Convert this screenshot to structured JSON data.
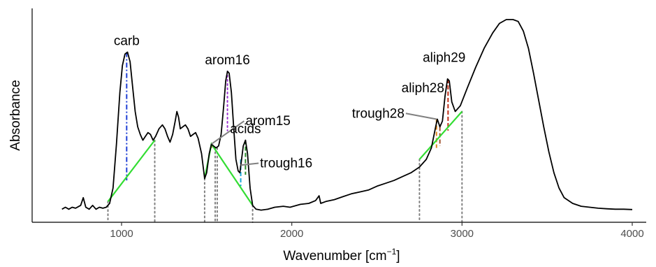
{
  "chart_data": {
    "type": "line",
    "title": "",
    "xlabel": "Wavenumber [cm",
    "xlabel_superscript": "−1",
    "xlabel_suffix": "]",
    "ylabel": "Absorbance",
    "xlim": [
      650,
      4100
    ],
    "ylim": [
      0,
      1
    ],
    "x_ticks": [
      1000,
      2000,
      3000,
      4000
    ],
    "x_tick_labels": [
      "1000",
      "2000",
      "3000",
      "4000"
    ],
    "y_ticks_shown": false,
    "grid": false,
    "series": [
      {
        "color": "#000000",
        "points": [
          [
            650,
            0.01
          ],
          [
            670,
            0.02
          ],
          [
            690,
            0.01
          ],
          [
            710,
            0.02
          ],
          [
            730,
            0.015
          ],
          [
            760,
            0.03
          ],
          [
            775,
            0.07
          ],
          [
            790,
            0.02
          ],
          [
            810,
            0.01
          ],
          [
            830,
            0.03
          ],
          [
            850,
            0.01
          ],
          [
            870,
            0.02
          ],
          [
            890,
            0.015
          ],
          [
            910,
            0.02
          ],
          [
            930,
            0.04
          ],
          [
            950,
            0.12
          ],
          [
            970,
            0.35
          ],
          [
            990,
            0.62
          ],
          [
            1005,
            0.76
          ],
          [
            1020,
            0.82
          ],
          [
            1035,
            0.83
          ],
          [
            1050,
            0.78
          ],
          [
            1065,
            0.65
          ],
          [
            1080,
            0.52
          ],
          [
            1095,
            0.44
          ],
          [
            1110,
            0.4
          ],
          [
            1125,
            0.37
          ],
          [
            1140,
            0.39
          ],
          [
            1155,
            0.41
          ],
          [
            1170,
            0.4
          ],
          [
            1185,
            0.37
          ],
          [
            1200,
            0.39
          ],
          [
            1220,
            0.43
          ],
          [
            1240,
            0.45
          ],
          [
            1255,
            0.43
          ],
          [
            1270,
            0.39
          ],
          [
            1285,
            0.36
          ],
          [
            1300,
            0.4
          ],
          [
            1315,
            0.47
          ],
          [
            1325,
            0.52
          ],
          [
            1335,
            0.49
          ],
          [
            1345,
            0.43
          ],
          [
            1360,
            0.44
          ],
          [
            1375,
            0.45
          ],
          [
            1390,
            0.43
          ],
          [
            1405,
            0.39
          ],
          [
            1420,
            0.4
          ],
          [
            1435,
            0.41
          ],
          [
            1450,
            0.38
          ],
          [
            1470,
            0.3
          ],
          [
            1488,
            0.17
          ],
          [
            1500,
            0.2
          ],
          [
            1515,
            0.3
          ],
          [
            1528,
            0.35
          ],
          [
            1540,
            0.34
          ],
          [
            1555,
            0.33
          ],
          [
            1570,
            0.34
          ],
          [
            1585,
            0.4
          ],
          [
            1600,
            0.55
          ],
          [
            1612,
            0.68
          ],
          [
            1622,
            0.73
          ],
          [
            1632,
            0.72
          ],
          [
            1645,
            0.62
          ],
          [
            1660,
            0.42
          ],
          [
            1672,
            0.27
          ],
          [
            1685,
            0.21
          ],
          [
            1695,
            0.2
          ],
          [
            1705,
            0.27
          ],
          [
            1715,
            0.34
          ],
          [
            1728,
            0.37
          ],
          [
            1740,
            0.3
          ],
          [
            1755,
            0.12
          ],
          [
            1770,
            0.03
          ],
          [
            1790,
            0.01
          ],
          [
            1820,
            0.005
          ],
          [
            1860,
            0.01
          ],
          [
            1900,
            0.02
          ],
          [
            1950,
            0.025
          ],
          [
            1990,
            0.02
          ],
          [
            2050,
            0.035
          ],
          [
            2100,
            0.04
          ],
          [
            2140,
            0.055
          ],
          [
            2160,
            0.08
          ],
          [
            2170,
            0.04
          ],
          [
            2200,
            0.05
          ],
          [
            2250,
            0.06
          ],
          [
            2300,
            0.075
          ],
          [
            2350,
            0.09
          ],
          [
            2400,
            0.1
          ],
          [
            2450,
            0.11
          ],
          [
            2500,
            0.13
          ],
          [
            2550,
            0.145
          ],
          [
            2600,
            0.16
          ],
          [
            2650,
            0.18
          ],
          [
            2700,
            0.2
          ],
          [
            2750,
            0.23
          ],
          [
            2790,
            0.27
          ],
          [
            2820,
            0.33
          ],
          [
            2845,
            0.44
          ],
          [
            2855,
            0.48
          ],
          [
            2870,
            0.44
          ],
          [
            2885,
            0.47
          ],
          [
            2900,
            0.6
          ],
          [
            2915,
            0.69
          ],
          [
            2925,
            0.68
          ],
          [
            2940,
            0.57
          ],
          [
            2960,
            0.52
          ],
          [
            2990,
            0.55
          ],
          [
            3030,
            0.64
          ],
          [
            3080,
            0.75
          ],
          [
            3130,
            0.85
          ],
          [
            3180,
            0.93
          ],
          [
            3220,
            0.98
          ],
          [
            3260,
            1.0
          ],
          [
            3300,
            1.0
          ],
          [
            3330,
            0.99
          ],
          [
            3360,
            0.94
          ],
          [
            3390,
            0.85
          ],
          [
            3420,
            0.72
          ],
          [
            3450,
            0.58
          ],
          [
            3480,
            0.44
          ],
          [
            3510,
            0.31
          ],
          [
            3540,
            0.2
          ],
          [
            3570,
            0.12
          ],
          [
            3600,
            0.07
          ],
          [
            3650,
            0.04
          ],
          [
            3700,
            0.025
          ],
          [
            3750,
            0.02
          ],
          [
            3800,
            0.015
          ],
          [
            3850,
            0.012
          ],
          [
            3900,
            0.01
          ],
          [
            3950,
            0.01
          ],
          [
            4000,
            0.008
          ]
        ]
      }
    ],
    "baselines": [
      {
        "color": "#33dd33",
        "points": [
          [
            920,
            0.05
          ],
          [
            1195,
            0.37
          ]
        ]
      },
      {
        "color": "#33dd33",
        "points": [
          [
            1488,
            0.17
          ],
          [
            1528,
            0.35
          ],
          [
            1770,
            0.03
          ]
        ]
      },
      {
        "color": "#33dd33",
        "points": [
          [
            2750,
            0.27
          ],
          [
            3000,
            0.52
          ]
        ]
      }
    ],
    "markers": [
      {
        "x": 920,
        "y_top": 0.05,
        "style": "dotted",
        "color": "#808080"
      },
      {
        "x": 1195,
        "y_top": 0.37,
        "style": "dotted",
        "color": "#808080"
      },
      {
        "x": 1488,
        "y_top": 0.17,
        "style": "dotted",
        "color": "#808080"
      },
      {
        "x": 1550,
        "y_top": 0.33,
        "style": "dotted",
        "color": "#808080"
      },
      {
        "x": 1562,
        "y_top": 0.33,
        "style": "dotted",
        "color": "#808080"
      },
      {
        "x": 1770,
        "y_top": 0.03,
        "style": "dotted",
        "color": "#808080"
      },
      {
        "x": 2750,
        "y_top": 0.27,
        "style": "dotted",
        "color": "#808080"
      },
      {
        "x": 3000,
        "y_top": 0.52,
        "style": "dotted",
        "color": "#808080"
      },
      {
        "x": 1030,
        "y_bottom": 0.16,
        "y_top": 0.83,
        "style": "dashdot",
        "color": "#1f3fd6"
      },
      {
        "x": 1622,
        "y_bottom": 0.42,
        "y_top": 0.73,
        "style": "dotted",
        "color": "#9b30d0"
      },
      {
        "x": 1528,
        "y_bottom": 0.33,
        "y_top": 0.35,
        "style": "solid",
        "color": "#d62020"
      },
      {
        "x": 1728,
        "y_bottom": 0.19,
        "y_top": 0.37,
        "style": "dashed",
        "color": "#2a8c2a"
      },
      {
        "x": 1700,
        "y_bottom": 0.13,
        "y_top": 0.27,
        "style": "dashed",
        "color": "#1aa8d8"
      },
      {
        "x": 2850,
        "y_bottom": 0.33,
        "y_top": 0.48,
        "style": "dashed",
        "color": "#e08a20"
      },
      {
        "x": 2870,
        "y_bottom": 0.34,
        "y_top": 0.44,
        "style": "dashed",
        "color": "#a0522d"
      },
      {
        "x": 2918,
        "y_bottom": 0.42,
        "y_top": 0.69,
        "style": "dashed",
        "color": "#c0301a"
      }
    ],
    "annotations": [
      {
        "text": "carb",
        "x": 1030,
        "y": 0.83,
        "placement": "above"
      },
      {
        "text": "arom16",
        "x": 1622,
        "y": 0.73,
        "placement": "above"
      },
      {
        "text": "arom15",
        "x": 1528,
        "y": 0.35,
        "placement": "leader",
        "label_x": 1720,
        "label_y": 0.47
      },
      {
        "text": "acids",
        "x": 1728,
        "y": 0.37,
        "placement": "above"
      },
      {
        "text": "trough16",
        "x": 1700,
        "y": 0.24,
        "placement": "leader",
        "label_x": 1805,
        "label_y": 0.25
      },
      {
        "text": "trough28",
        "x": 2850,
        "y": 0.48,
        "placement": "leader",
        "label_x": 2670,
        "label_y": 0.51
      },
      {
        "text": "aliph28",
        "x": 2860,
        "y": 0.48,
        "placement": "above-left",
        "label_x": 2770,
        "label_y": 0.62
      },
      {
        "text": "aliph29",
        "x": 2918,
        "y": 0.69,
        "placement": "above",
        "label_x": 2895,
        "label_y": 0.78
      }
    ]
  }
}
